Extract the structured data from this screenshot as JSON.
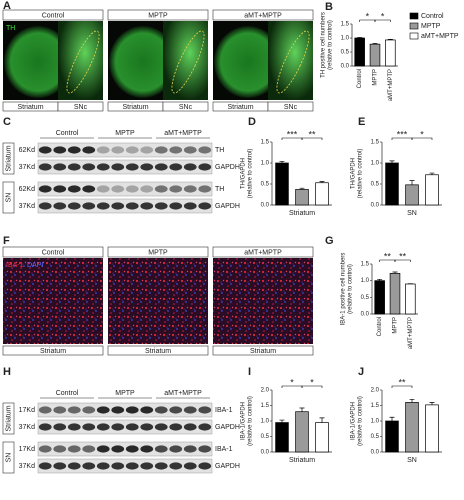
{
  "figure": {
    "A": {
      "letter": "A",
      "stain": "TH",
      "groups": [
        {
          "title": "Control",
          "labels": [
            "Striatum",
            "SNc"
          ]
        },
        {
          "title": "MPTP",
          "labels": [
            "Striatum",
            "SNc"
          ]
        },
        {
          "title": "aMT+MPTP",
          "labels": [
            "Striatum",
            "SNc"
          ]
        }
      ]
    },
    "C": {
      "letter": "C",
      "groups": [
        "Control",
        "MPTP",
        "aMT+MPTP"
      ],
      "regions": [
        {
          "name": "Striatum",
          "rows": [
            {
              "kd": "62Kd",
              "protein": "TH"
            },
            {
              "kd": "37Kd",
              "protein": "GAPDH"
            }
          ]
        },
        {
          "name": "SN",
          "rows": [
            {
              "kd": "62Kd",
              "protein": "TH"
            },
            {
              "kd": "37Kd",
              "protein": "GAPDH"
            }
          ]
        }
      ]
    },
    "F": {
      "letter": "F",
      "stain": [
        "IBA-1",
        "DAPI"
      ],
      "groups": [
        {
          "title": "Control",
          "label": "Striatum"
        },
        {
          "title": "MPTP",
          "label": "Striatum"
        },
        {
          "title": "aMT+MPTP",
          "label": "Striatum"
        }
      ]
    },
    "H": {
      "letter": "H",
      "groups": [
        "Control",
        "MPTP",
        "aMT+MPTP"
      ],
      "regions": [
        {
          "name": "Striatum",
          "rows": [
            {
              "kd": "17Kd",
              "protein": "IBA-1"
            },
            {
              "kd": "37Kd",
              "protein": "GAPDH"
            }
          ]
        },
        {
          "name": "SN",
          "rows": [
            {
              "kd": "17Kd",
              "protein": "IBA-1"
            },
            {
              "kd": "37Kd",
              "protein": "GAPDH"
            }
          ]
        }
      ]
    }
  },
  "chart_data": [
    {
      "panel": "B",
      "type": "bar",
      "y_label": [
        "TH positive cell numbers",
        "(relative to control)"
      ],
      "categories": [
        "Control",
        "MPTP",
        "aMT+MPTP"
      ],
      "values": [
        1.0,
        0.78,
        0.93
      ],
      "errors": [
        0.02,
        0.03,
        0.02
      ],
      "colors": [
        "#000000",
        "#9a9a9a",
        "#ffffff"
      ],
      "ylim": [
        0,
        1.5
      ],
      "yticks": [
        {
          "value": 0,
          "label": "0.0"
        },
        {
          "value": 0.5,
          "label": "0.5"
        },
        {
          "value": 1,
          "label": "1.0"
        },
        {
          "value": 1.5,
          "label": "1.5"
        }
      ],
      "significance": [
        "*",
        "*"
      ],
      "legend": [
        "Control",
        "MPTP",
        "aMT+MPTP"
      ],
      "legend_position": "right"
    },
    {
      "panel": "D",
      "type": "bar",
      "y_label": [
        "TH/GAPDH",
        "(relative to control)"
      ],
      "x_label": "Striatum",
      "values": [
        1.0,
        0.37,
        0.53
      ],
      "errors": [
        0.04,
        0.03,
        0.03
      ],
      "colors": [
        "#000000",
        "#9a9a9a",
        "#ffffff"
      ],
      "ylim": [
        0,
        1.5
      ],
      "yticks": [
        {
          "value": 0,
          "label": "0.0"
        },
        {
          "value": 0.5,
          "label": "0.5"
        },
        {
          "value": 1,
          "label": "1.0"
        },
        {
          "value": 1.5,
          "label": "1.5"
        }
      ],
      "significance": [
        "***",
        "**"
      ]
    },
    {
      "panel": "E",
      "type": "bar",
      "y_label": [
        "TH/GAPDH",
        "(relative to control)"
      ],
      "x_label": "SN",
      "values": [
        1.0,
        0.48,
        0.72
      ],
      "errors": [
        0.05,
        0.1,
        0.04
      ],
      "colors": [
        "#000000",
        "#9a9a9a",
        "#ffffff"
      ],
      "ylim": [
        0,
        1.5
      ],
      "yticks": [
        {
          "value": 0,
          "label": "0.0"
        },
        {
          "value": 0.5,
          "label": "0.5"
        },
        {
          "value": 1,
          "label": "1.0"
        },
        {
          "value": 1.5,
          "label": "1.5"
        }
      ],
      "significance": [
        "***",
        "*"
      ]
    },
    {
      "panel": "G",
      "type": "bar",
      "y_label": [
        "IBA-1 positive cell numbers",
        "(relative to control)"
      ],
      "categories": [
        "Control",
        "MPTP",
        "aMT+MPTP"
      ],
      "values": [
        1.0,
        1.22,
        0.9
      ],
      "errors": [
        0.04,
        0.04,
        0.01
      ],
      "colors": [
        "#000000",
        "#9a9a9a",
        "#ffffff"
      ],
      "ylim": [
        0,
        1.5
      ],
      "yticks": [
        {
          "value": 0,
          "label": "0.0"
        },
        {
          "value": 0.5,
          "label": "0.5"
        },
        {
          "value": 1,
          "label": "1.0"
        },
        {
          "value": 1.5,
          "label": "1.5"
        }
      ],
      "significance": [
        "**",
        "**"
      ]
    },
    {
      "panel": "I",
      "type": "bar",
      "y_label": [
        "IBA-1/GAPDH",
        "(relative to control)"
      ],
      "x_label": "Striatum",
      "values": [
        0.95,
        1.3,
        0.95
      ],
      "errors": [
        0.08,
        0.12,
        0.15
      ],
      "colors": [
        "#000000",
        "#9a9a9a",
        "#ffffff"
      ],
      "ylim": [
        0,
        2
      ],
      "yticks": [
        {
          "value": 0,
          "label": "0.0"
        },
        {
          "value": 0.5,
          "label": "0.5"
        },
        {
          "value": 1,
          "label": "1.0"
        },
        {
          "value": 1.5,
          "label": "1.5"
        },
        {
          "value": 2,
          "label": "2.0"
        }
      ],
      "significance": [
        "*",
        "*"
      ]
    },
    {
      "panel": "J",
      "type": "bar",
      "y_label": [
        "IBA-1/GAPDH",
        "(relative to control)"
      ],
      "x_label": "SN",
      "values": [
        1.0,
        1.6,
        1.52
      ],
      "errors": [
        0.12,
        0.1,
        0.08
      ],
      "colors": [
        "#000000",
        "#9a9a9a",
        "#ffffff"
      ],
      "ylim": [
        0,
        2
      ],
      "yticks": [
        {
          "value": 0,
          "label": "0.0"
        },
        {
          "value": 0.5,
          "label": "0.5"
        },
        {
          "value": 1,
          "label": "1.0"
        },
        {
          "value": 1.5,
          "label": "1.5"
        },
        {
          "value": 2,
          "label": "2.0"
        }
      ],
      "significance": [
        "**"
      ]
    }
  ]
}
